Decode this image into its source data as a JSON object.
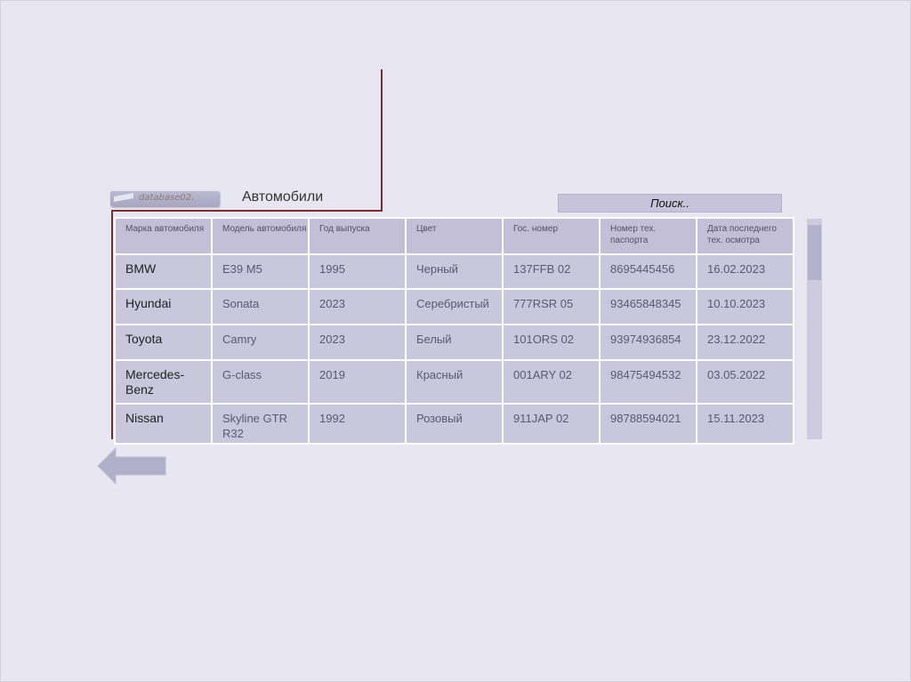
{
  "header": {
    "db_label": "database02.",
    "title": "Автомобили"
  },
  "search": {
    "label": "Поиск.."
  },
  "table": {
    "columns": [
      "Марка автомобиля",
      "Модель автомобиля",
      "Год выпуска",
      "Цвет",
      "Гос. номер",
      "Номер тех. паспорта",
      "Дата последнего тех. осмотра"
    ],
    "rows": [
      [
        "BMW",
        "E39 M5",
        "1995",
        "Черный",
        "137FFB 02",
        "8695445456",
        "16.02.2023"
      ],
      [
        "Hyundai",
        "Sonata",
        "2023",
        "Серебристый",
        "777RSR 05",
        "93465848345",
        "10.10.2023"
      ],
      [
        "Toyota",
        "Camry",
        "2023",
        "Белый",
        "101ORS 02",
        "93974936854",
        "23.12.2022"
      ],
      [
        "Mercedes-Benz",
        "G-class",
        "2019",
        "Красный",
        "001ARY 02",
        "98475494532",
        "03.05.2022"
      ],
      [
        "Nissan",
        "Skyline GTR R32",
        "1992",
        "Розовый",
        "911JAP 02",
        "98788594021",
        "15.11.2023"
      ]
    ]
  },
  "icons": {
    "back": "arrow-left-icon",
    "db": "database-badge-icon"
  },
  "colors": {
    "background": "#e8e6f1",
    "cell": "#c9c7dc",
    "accent_line": "#7a2e33"
  }
}
